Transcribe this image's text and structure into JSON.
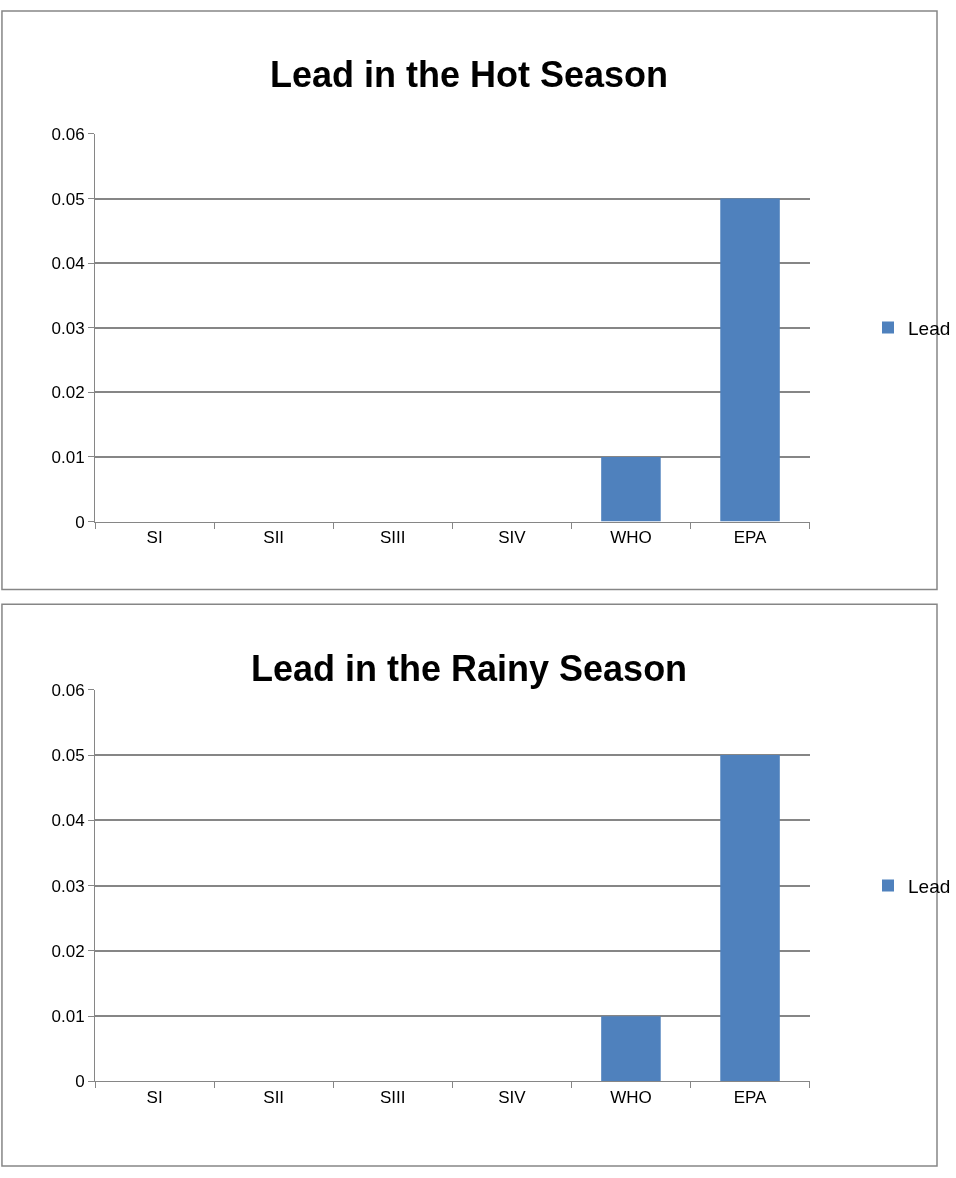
{
  "chart_data": [
    {
      "type": "bar",
      "title": "Lead in the Hot Season",
      "categories": [
        "SI",
        "SII",
        "SIII",
        "SIV",
        "WHO",
        "EPA"
      ],
      "series": [
        {
          "name": "Lead",
          "color": "#4f81bd",
          "values": [
            0,
            0,
            0,
            0,
            0.01,
            0.05
          ]
        }
      ],
      "ylim": [
        0,
        0.06
      ],
      "yticks": [
        {
          "value": 0,
          "label": "0"
        },
        0.01,
        0.02,
        0.03,
        0.04,
        0.05,
        0.06
      ],
      "grid": "y",
      "legend": "right"
    },
    {
      "type": "bar",
      "title": "Lead in the Rainy Season",
      "categories": [
        "SI",
        "SII",
        "SIII",
        "SIV",
        "WHO",
        "EPA"
      ],
      "series": [
        {
          "name": "Lead",
          "color": "#4f81bd",
          "values": [
            0,
            0,
            0,
            0,
            0.01,
            0.05
          ]
        }
      ],
      "ylim": [
        0,
        0.06
      ],
      "yticks": [
        {
          "value": 0,
          "label": "0"
        },
        0.01,
        0.02,
        0.03,
        0.04,
        0.05,
        0.06
      ],
      "grid": "y",
      "legend": "right"
    }
  ]
}
